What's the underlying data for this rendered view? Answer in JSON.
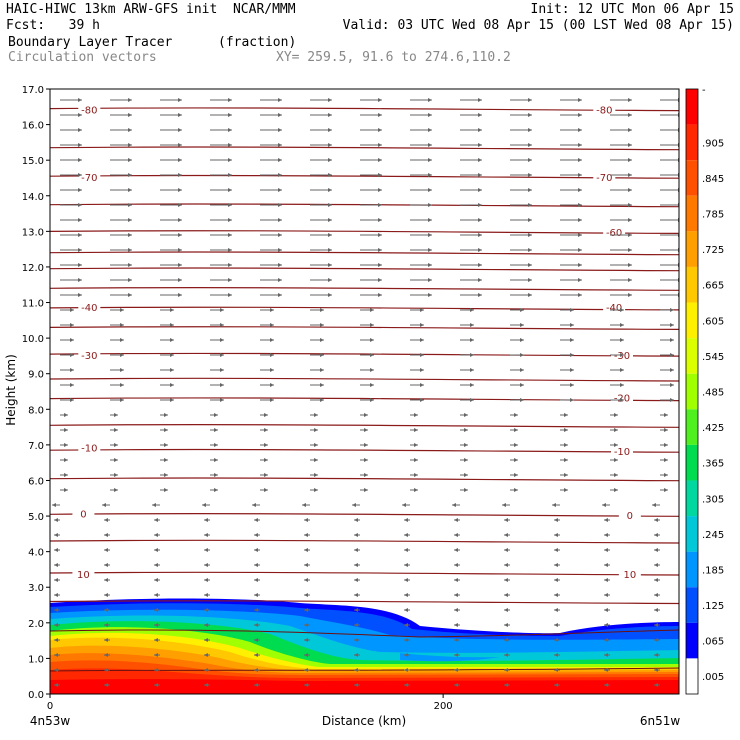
{
  "header": {
    "model_line": "HAIC-HIWC 13km ARW-GFS init  NCAR/MMM",
    "init_line": "Init: 12 UTC Mon 06 Apr 15",
    "fcst_line": "Fcst:   39 h",
    "valid_line": "Valid: 03 UTC Wed 08 Apr 15 (00 LST Wed 08 Apr 15)",
    "field1_name": "Boundary Layer Tracer",
    "field1_units": "(fraction)",
    "field2_name": "Circulation vectors",
    "xy_text": "XY= 259.5, 91.6 to 274.6,110.2"
  },
  "chart_data": {
    "type": "heatmap",
    "ylabel": "Height (km)",
    "xlabel": "Distance (km)",
    "y_ticks": [
      "0.0",
      "1.0",
      "2.0",
      "3.0",
      "4.0",
      "5.0",
      "6.0",
      "7.0",
      "8.0",
      "9.0",
      "10.0",
      "11.0",
      "12.0",
      "13.0",
      "14.0",
      "15.0",
      "16.0",
      "17.0"
    ],
    "ylim": [
      0,
      17
    ],
    "x_ticks": [
      "0",
      "200"
    ],
    "xlim": [
      0,
      320
    ],
    "x_end_labels": {
      "left": "4n53w",
      "right": "6n51w"
    },
    "colorbar_labels": [
      "-",
      ".905",
      ".845",
      ".785",
      ".725",
      ".665",
      ".605",
      ".545",
      ".485",
      ".425",
      ".365",
      ".305",
      ".245",
      ".185",
      ".125",
      ".065",
      ".005"
    ],
    "colorbar_colors": [
      "#ff0000",
      "#ff2800",
      "#ff5000",
      "#ff7800",
      "#ffa000",
      "#ffc800",
      "#fff000",
      "#dcff00",
      "#a0ff00",
      "#50f020",
      "#00dc50",
      "#00d8a0",
      "#00c8d8",
      "#0096ff",
      "#0050ff",
      "#0000ff",
      "#ffffff"
    ],
    "contour_labels": [
      {
        "text": "-80",
        "x": 20,
        "y": 16.4
      },
      {
        "text": "-80",
        "x": 282,
        "y": 16.4
      },
      {
        "text": "-70",
        "x": 20,
        "y": 14.5
      },
      {
        "text": "-70",
        "x": 282,
        "y": 14.5
      },
      {
        "text": "-60",
        "x": 287,
        "y": 12.95
      },
      {
        "text": "-40",
        "x": 20,
        "y": 10.85
      },
      {
        "text": "-40",
        "x": 287,
        "y": 10.85
      },
      {
        "text": "-30",
        "x": 20,
        "y": 9.5
      },
      {
        "text": "-30",
        "x": 291,
        "y": 9.5
      },
      {
        "text": "-20",
        "x": 291,
        "y": 8.3
      },
      {
        "text": "-10",
        "x": 20,
        "y": 6.9
      },
      {
        "text": "-10",
        "x": 291,
        "y": 6.8
      },
      {
        "text": "0",
        "x": 17,
        "y": 5.05
      },
      {
        "text": "0",
        "x": 295,
        "y": 5.0
      },
      {
        "text": "10",
        "x": 17,
        "y": 3.35
      },
      {
        "text": "10",
        "x": 295,
        "y": 3.35
      }
    ]
  }
}
